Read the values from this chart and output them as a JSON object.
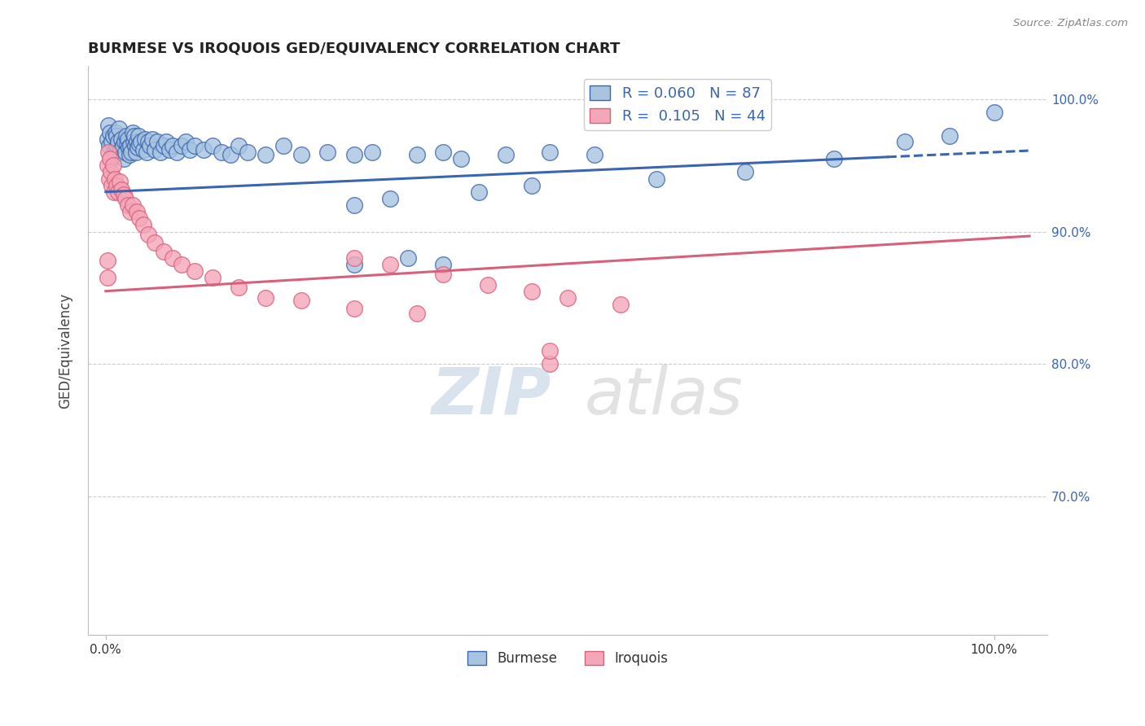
{
  "title": "BURMESE VS IROQUOIS GED/EQUIVALENCY CORRELATION CHART",
  "source": "Source: ZipAtlas.com",
  "ylabel": "GED/Equivalency",
  "burmese_color": "#a8c4e0",
  "iroquois_color": "#f4a7b9",
  "burmese_line_color": "#3a65b0",
  "iroquois_line_color": "#d9607a",
  "r_burmese": 0.06,
  "n_burmese": 87,
  "r_iroquois": 0.105,
  "n_iroquois": 44,
  "burmese_x": [
    0.002,
    0.003,
    0.004,
    0.005,
    0.006,
    0.007,
    0.008,
    0.009,
    0.01,
    0.011,
    0.012,
    0.013,
    0.014,
    0.015,
    0.016,
    0.017,
    0.018,
    0.019,
    0.02,
    0.021,
    0.022,
    0.023,
    0.024,
    0.025,
    0.026,
    0.027,
    0.028,
    0.029,
    0.03,
    0.031,
    0.032,
    0.033,
    0.034,
    0.035,
    0.036,
    0.037,
    0.038,
    0.04,
    0.042,
    0.044,
    0.046,
    0.048,
    0.05,
    0.052,
    0.055,
    0.058,
    0.062,
    0.065,
    0.068,
    0.072,
    0.075,
    0.08,
    0.085,
    0.09,
    0.095,
    0.1,
    0.11,
    0.12,
    0.13,
    0.14,
    0.15,
    0.16,
    0.18,
    0.2,
    0.22,
    0.25,
    0.28,
    0.3,
    0.35,
    0.38,
    0.4,
    0.45,
    0.5,
    0.55,
    0.28,
    0.32,
    0.42,
    0.48,
    0.28,
    0.34,
    0.38,
    0.62,
    0.72,
    0.82,
    0.9,
    0.95,
    1.0
  ],
  "burmese_y": [
    0.97,
    0.98,
    0.965,
    0.975,
    0.955,
    0.968,
    0.972,
    0.96,
    0.958,
    0.975,
    0.972,
    0.965,
    0.968,
    0.978,
    0.96,
    0.962,
    0.97,
    0.965,
    0.955,
    0.968,
    0.96,
    0.972,
    0.966,
    0.97,
    0.964,
    0.958,
    0.965,
    0.96,
    0.975,
    0.968,
    0.972,
    0.965,
    0.96,
    0.968,
    0.964,
    0.972,
    0.966,
    0.968,
    0.962,
    0.97,
    0.96,
    0.968,
    0.965,
    0.97,
    0.962,
    0.968,
    0.96,
    0.965,
    0.968,
    0.962,
    0.965,
    0.96,
    0.965,
    0.968,
    0.962,
    0.965,
    0.962,
    0.965,
    0.96,
    0.958,
    0.965,
    0.96,
    0.958,
    0.965,
    0.958,
    0.96,
    0.958,
    0.96,
    0.958,
    0.96,
    0.955,
    0.958,
    0.96,
    0.958,
    0.92,
    0.925,
    0.93,
    0.935,
    0.875,
    0.88,
    0.875,
    0.94,
    0.945,
    0.955,
    0.968,
    0.972,
    0.99
  ],
  "iroquois_x": [
    0.002,
    0.003,
    0.004,
    0.005,
    0.006,
    0.007,
    0.008,
    0.009,
    0.01,
    0.012,
    0.014,
    0.016,
    0.018,
    0.02,
    0.022,
    0.025,
    0.028,
    0.03,
    0.035,
    0.038,
    0.042,
    0.048,
    0.055,
    0.065,
    0.075,
    0.085,
    0.1,
    0.12,
    0.15,
    0.18,
    0.22,
    0.28,
    0.35,
    0.28,
    0.32,
    0.38,
    0.43,
    0.48,
    0.52,
    0.58,
    0.002,
    0.002,
    0.5,
    0.5
  ],
  "iroquois_y": [
    0.95,
    0.96,
    0.94,
    0.955,
    0.945,
    0.935,
    0.95,
    0.93,
    0.94,
    0.935,
    0.93,
    0.938,
    0.932,
    0.928,
    0.925,
    0.92,
    0.915,
    0.92,
    0.915,
    0.91,
    0.905,
    0.898,
    0.892,
    0.885,
    0.88,
    0.875,
    0.87,
    0.865,
    0.858,
    0.85,
    0.848,
    0.842,
    0.838,
    0.88,
    0.875,
    0.868,
    0.86,
    0.855,
    0.85,
    0.845,
    0.878,
    0.865,
    0.8,
    0.81
  ],
  "burmese_trend": [
    0.0,
    1.0,
    0.93,
    0.96
  ],
  "iroquois_trend": [
    0.0,
    1.0,
    0.855,
    0.895
  ],
  "y_ticks": [
    0.7,
    0.8,
    0.9,
    1.0
  ],
  "y_tick_labels_right": [
    "70.0%",
    "80.0%",
    "90.0%",
    "100.0%"
  ],
  "x_tick_labels": [
    "0.0%",
    "100.0%"
  ]
}
